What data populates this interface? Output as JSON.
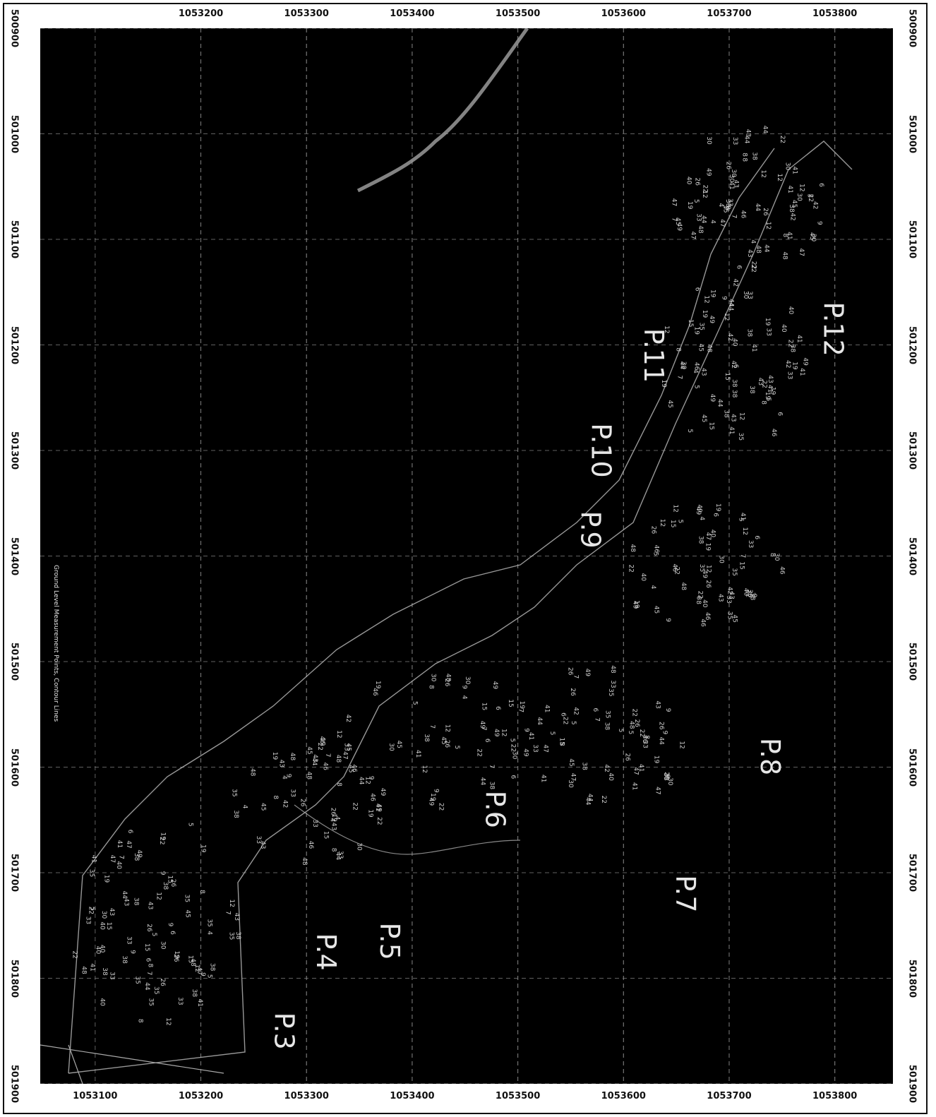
{
  "map": {
    "top_x_ticks": [
      "1053200",
      "1053300",
      "1053400",
      "1053500",
      "1053600",
      "1053700",
      "1053800"
    ],
    "bottom_x_ticks": [
      "1053100",
      "1053200",
      "1053300",
      "1053400",
      "1053500",
      "1053600",
      "1053700",
      "1053800"
    ],
    "y_ticks": [
      "500900",
      "501000",
      "501100",
      "501200",
      "501300",
      "501400",
      "501500",
      "501600",
      "501700",
      "501800",
      "501900"
    ],
    "x_range": [
      1053048,
      1053855
    ],
    "y_range": [
      500900,
      501900
    ],
    "plot_labels": [
      {
        "text": "P.12",
        "x": 1053790,
        "y": 501185
      },
      {
        "text": "P.11",
        "x": 1053620,
        "y": 501210
      },
      {
        "text": "P.10",
        "x": 1053570,
        "y": 501300
      },
      {
        "text": "P.9",
        "x": 1053560,
        "y": 501375
      },
      {
        "text": "P.8",
        "x": 1053730,
        "y": 501590
      },
      {
        "text": "P.7",
        "x": 1053650,
        "y": 501720
      },
      {
        "text": "P.6",
        "x": 1053470,
        "y": 501640
      },
      {
        "text": "P.5",
        "x": 1053370,
        "y": 501765
      },
      {
        "text": "P.4",
        "x": 1053310,
        "y": 501775
      },
      {
        "text": "P.3",
        "x": 1053270,
        "y": 501850
      }
    ],
    "colors": {
      "background": "#000000",
      "ink": "#e6e6e6",
      "grid": "#8a8a8a",
      "frame": "#111111"
    },
    "legend_text": "Ground Level Measurement Points, Contour Lines"
  }
}
